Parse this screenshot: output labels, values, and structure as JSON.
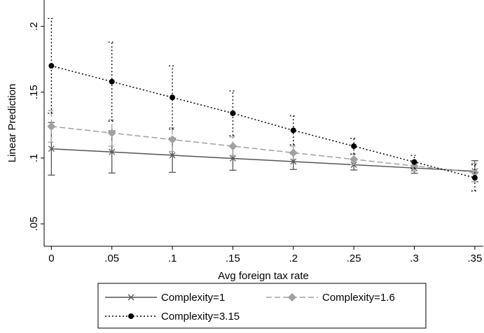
{
  "chart_data": {
    "type": "line",
    "x_label": "Avg foreign tax rate",
    "y_label": "Linear Prediction",
    "x": [
      0,
      0.05,
      0.1,
      0.15,
      0.2,
      0.25,
      0.3,
      0.35
    ],
    "series": [
      {
        "name": "Complexity=1",
        "color": "#555555",
        "dash": "solid",
        "marker": "x",
        "values": [
          0.107,
          0.1046,
          0.1021,
          0.0997,
          0.0973,
          0.0949,
          0.0924,
          0.09
        ],
        "ci_low": [
          0.087,
          0.0886,
          0.0891,
          0.0907,
          0.0913,
          0.0909,
          0.0884,
          0.082
        ],
        "ci_high": [
          0.127,
          0.1206,
          0.1151,
          0.1087,
          0.1033,
          0.0989,
          0.0964,
          0.098
        ]
      },
      {
        "name": "Complexity=1.6",
        "color": "#a0a0a0",
        "dash": "dashed",
        "marker": "diamond",
        "values": [
          0.124,
          0.119,
          0.114,
          0.109,
          0.104,
          0.099,
          0.094,
          0.089
        ],
        "ci_low": [
          0.112,
          0.109,
          0.105,
          0.102,
          0.099,
          0.095,
          0.09,
          0.082
        ],
        "ci_high": [
          0.136,
          0.129,
          0.123,
          0.116,
          0.109,
          0.103,
          0.098,
          0.096
        ]
      },
      {
        "name": "Complexity=3.15",
        "color": "#000000",
        "dash": "dotted",
        "marker": "circle",
        "values": [
          0.17,
          0.158,
          0.146,
          0.134,
          0.121,
          0.109,
          0.097,
          0.085
        ],
        "ci_low": [
          0.134,
          0.128,
          0.122,
          0.117,
          0.11,
          0.103,
          0.092,
          0.075
        ],
        "ci_high": [
          0.206,
          0.188,
          0.17,
          0.151,
          0.132,
          0.115,
          0.102,
          0.095
        ]
      }
    ],
    "xlim": [
      -0.006,
      0.357
    ],
    "ylim": [
      0.033,
      0.22
    ],
    "xticks": [
      0,
      {
        "value": 0.05,
        "label": ".05"
      },
      {
        "value": 0.1,
        "label": ".1"
      },
      {
        "value": 0.15,
        "label": ".15"
      },
      {
        "value": 0.2,
        "label": ".2"
      },
      {
        "value": 0.25,
        "label": ".25"
      },
      {
        "value": 0.3,
        "label": ".3"
      },
      {
        "value": 0.35,
        "label": ".35"
      }
    ],
    "yticks": [
      {
        "value": 0.05,
        "label": ".05"
      },
      {
        "value": 0.1,
        "label": ".1"
      },
      {
        "value": 0.15,
        "label": ".15"
      },
      {
        "value": 0.2,
        "label": ".2"
      }
    ],
    "grid": false,
    "legend": "bottom"
  }
}
